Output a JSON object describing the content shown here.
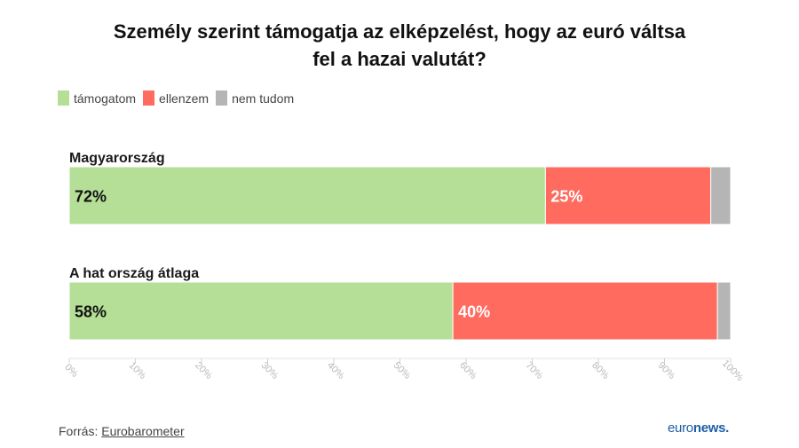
{
  "title_line1": "Személy szerint támogatja az elképzelést, hogy az euró váltsa",
  "title_line2": "fel a hazai valutát?",
  "legend": [
    {
      "label": "támogatom",
      "color": "#b5de96"
    },
    {
      "label": "ellenzem",
      "color": "#ff6b5f"
    },
    {
      "label": "nem tudom",
      "color": "#b5b5b5"
    }
  ],
  "chart_data": {
    "type": "bar",
    "orientation": "horizontal-stacked",
    "categories": [
      "Magyarország",
      "A hat ország átlaga"
    ],
    "series": [
      {
        "name": "támogatom",
        "values": [
          72,
          58
        ],
        "labels": [
          "72%",
          "58%"
        ],
        "color": "#b5de96"
      },
      {
        "name": "ellenzem",
        "values": [
          25,
          40
        ],
        "labels": [
          "25%",
          "40%"
        ],
        "color": "#ff6b5f"
      },
      {
        "name": "nem tudom",
        "values": [
          3,
          2
        ],
        "labels": [
          "",
          ""
        ],
        "color": "#b5b5b5"
      }
    ],
    "x_ticks": [
      "0%",
      "10%",
      "20%",
      "30%",
      "40%",
      "50%",
      "60%",
      "70%",
      "80%",
      "90%",
      "100%"
    ],
    "xlim": [
      0,
      100
    ],
    "grid": true,
    "legend_position": "top-left"
  },
  "footer": {
    "source_prefix": "Forrás: ",
    "source_name": "Eurobarometer",
    "brand_a": "euro",
    "brand_b": "news."
  }
}
